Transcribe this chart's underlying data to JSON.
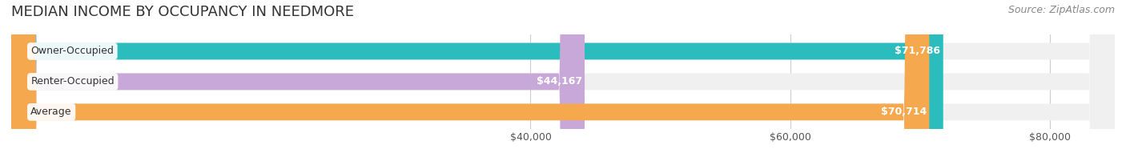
{
  "title": "MEDIAN INCOME BY OCCUPANCY IN NEEDMORE",
  "source": "Source: ZipAtlas.com",
  "categories": [
    "Owner-Occupied",
    "Renter-Occupied",
    "Average"
  ],
  "values": [
    71786,
    44167,
    70714
  ],
  "labels": [
    "$71,786",
    "$44,167",
    "$70,714"
  ],
  "bar_colors": [
    "#2bbcbe",
    "#c8a8d8",
    "#f5a84e"
  ],
  "bar_bg_color": "#f0f0f0",
  "xmax": 85000,
  "xticks": [
    40000,
    60000,
    80000
  ],
  "xtick_labels": [
    "$40,000",
    "$60,000",
    "$80,000"
  ],
  "title_fontsize": 13,
  "label_fontsize": 9,
  "source_fontsize": 9,
  "bar_height": 0.55,
  "figsize": [
    14.06,
    1.96
  ],
  "dpi": 100
}
